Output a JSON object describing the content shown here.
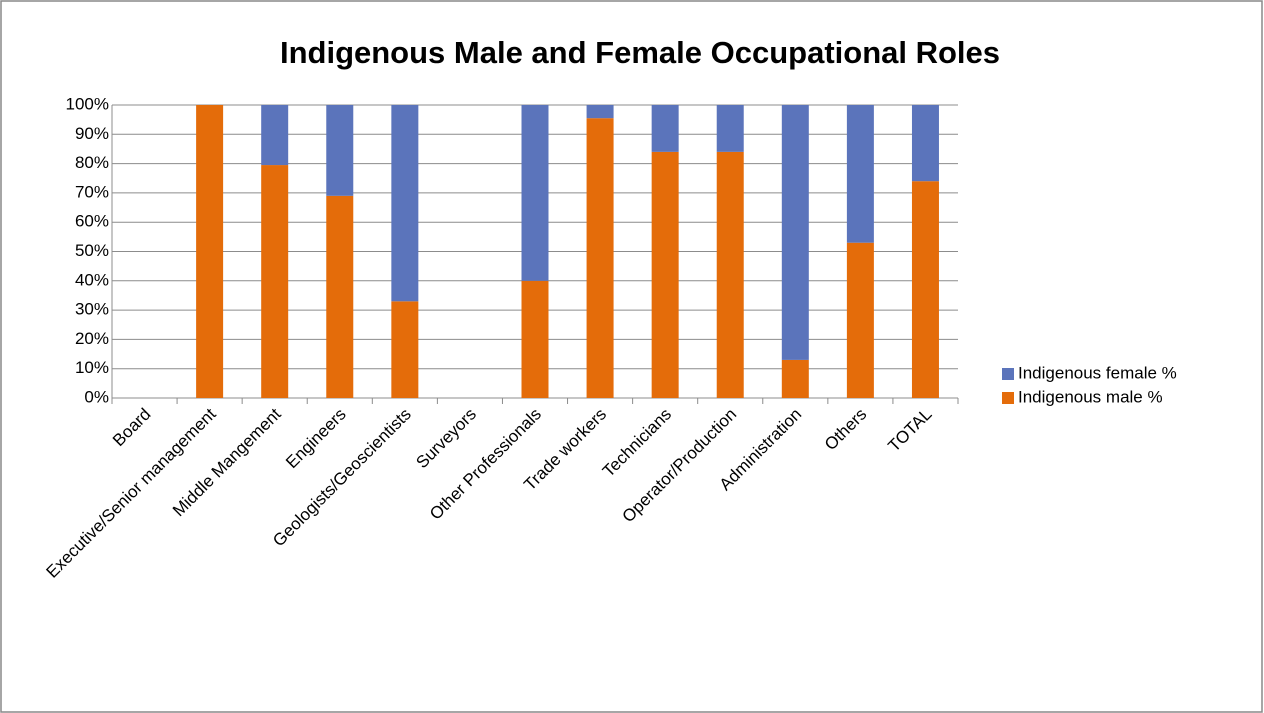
{
  "chart_data": {
    "type": "stacked_bar",
    "title": "Indigenous Male and Female Occupational Roles",
    "categories": [
      "Board",
      "Executive/Senior management",
      "Middle Mangement",
      "Engineers",
      "Geologists/Geoscientists",
      "Surveyors",
      "Other Professionals",
      "Trade workers",
      "Technicians",
      "Operator/Production",
      "Administration",
      "Others",
      "TOTAL"
    ],
    "series": [
      {
        "name": "Indigenous male %",
        "color": "#E46C0A",
        "values": [
          0,
          100,
          79.5,
          69,
          33,
          0,
          40,
          95.5,
          84,
          84,
          13,
          53,
          74
        ]
      },
      {
        "name": "Indigenous female %",
        "color": "#5B74BB",
        "values": [
          0,
          0,
          20.5,
          31,
          67,
          0,
          60,
          4.5,
          16,
          16,
          87,
          47,
          26
        ]
      }
    ],
    "ylim": [
      0,
      100
    ],
    "yticks": [
      {
        "value": 0,
        "label": "0%"
      },
      {
        "value": 10,
        "label": "10%"
      },
      {
        "value": 20,
        "label": "20%"
      },
      {
        "value": 30,
        "label": "30%"
      },
      {
        "value": 40,
        "label": "40%"
      },
      {
        "value": 50,
        "label": "50%"
      },
      {
        "value": 60,
        "label": "60%"
      },
      {
        "value": 70,
        "label": "70%"
      },
      {
        "value": 80,
        "label": "80%"
      },
      {
        "value": 90,
        "label": "90%"
      },
      {
        "value": 100,
        "label": "100%"
      }
    ],
    "grid": true,
    "legend": "right"
  }
}
